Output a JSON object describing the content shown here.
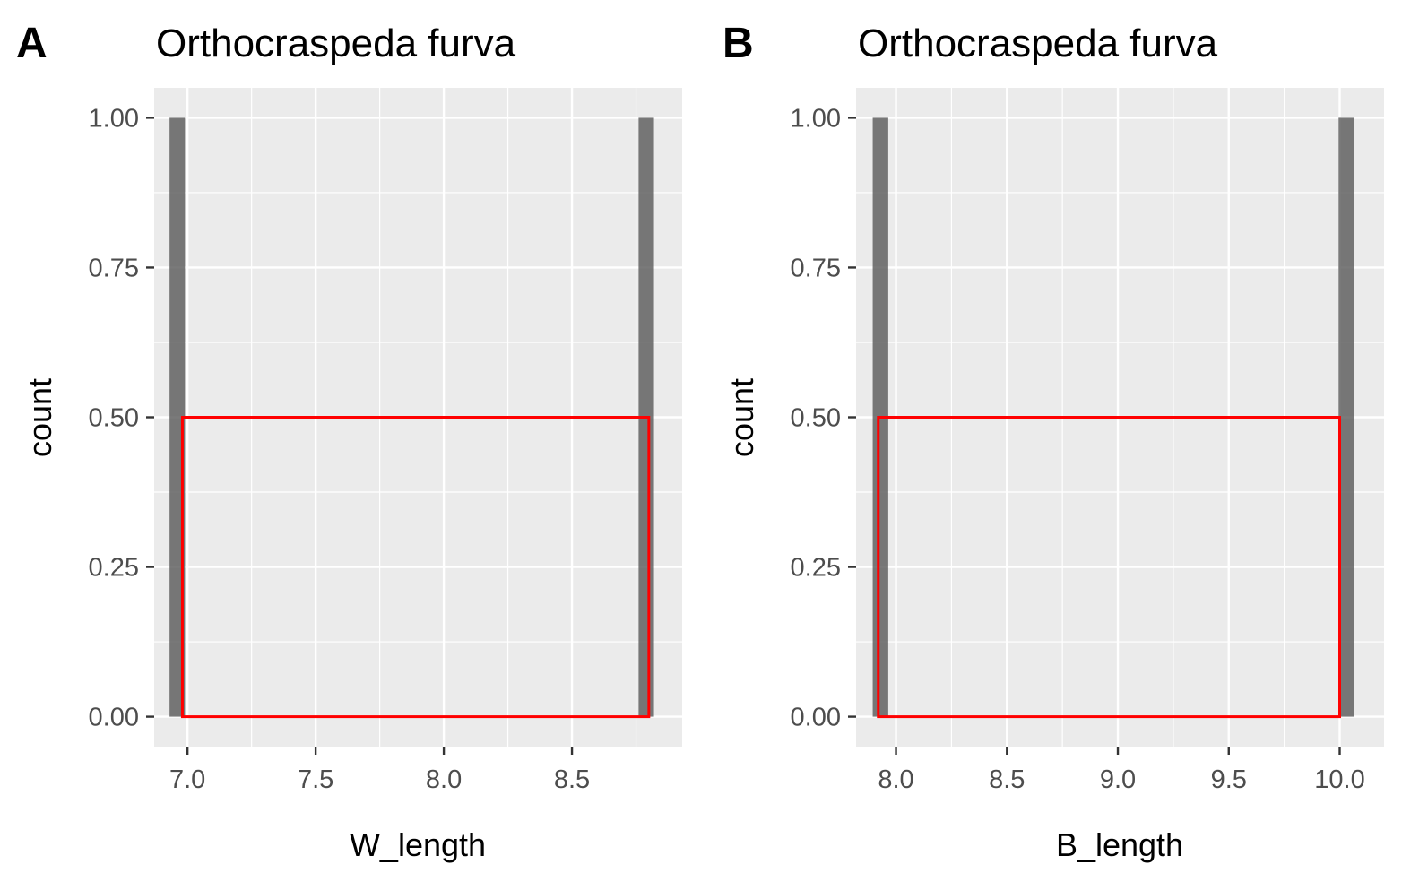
{
  "chart_data": [
    {
      "type": "bar",
      "panel_tag": "A",
      "title": "Orthocraspeda furva",
      "xlabel": "W_length",
      "ylabel": "count",
      "x_ticks": [
        "7.0",
        "7.5",
        "8.0",
        "8.5"
      ],
      "x_tick_values": [
        7.0,
        7.5,
        8.0,
        8.5
      ],
      "y_ticks": [
        "0.00",
        "0.25",
        "0.50",
        "0.75",
        "1.00"
      ],
      "y_tick_values": [
        0,
        0.25,
        0.5,
        0.75,
        1.0
      ],
      "xlim": [
        6.87,
        8.93
      ],
      "ylim": [
        -0.05,
        1.05
      ],
      "bars": [
        {
          "x": 6.96,
          "width": 0.06,
          "count": 1
        },
        {
          "x": 8.79,
          "width": 0.06,
          "count": 1
        }
      ],
      "overlay_rect": {
        "x_min": 6.98,
        "x_max": 8.8,
        "y_min": 0,
        "y_max": 0.5,
        "color": "#ff0000"
      },
      "grid": true,
      "bar_color": "#595959",
      "panel_background": "#ebebeb"
    },
    {
      "type": "bar",
      "panel_tag": "B",
      "title": "Orthocraspeda furva",
      "xlabel": "B_length",
      "ylabel": "count",
      "x_ticks": [
        "8.0",
        "8.5",
        "9.0",
        "9.5",
        "10.0"
      ],
      "x_tick_values": [
        8.0,
        8.5,
        9.0,
        9.5,
        10.0
      ],
      "y_ticks": [
        "0.00",
        "0.25",
        "0.50",
        "0.75",
        "1.00"
      ],
      "y_tick_values": [
        0,
        0.25,
        0.5,
        0.75,
        1.0
      ],
      "xlim": [
        7.82,
        10.2
      ],
      "ylim": [
        -0.05,
        1.05
      ],
      "bars": [
        {
          "x": 7.93,
          "width": 0.07,
          "count": 1
        },
        {
          "x": 10.03,
          "width": 0.07,
          "count": 1
        }
      ],
      "overlay_rect": {
        "x_min": 7.92,
        "x_max": 10.0,
        "y_min": 0,
        "y_max": 0.5,
        "color": "#ff0000"
      },
      "grid": true,
      "bar_color": "#595959",
      "panel_background": "#ebebeb"
    }
  ]
}
